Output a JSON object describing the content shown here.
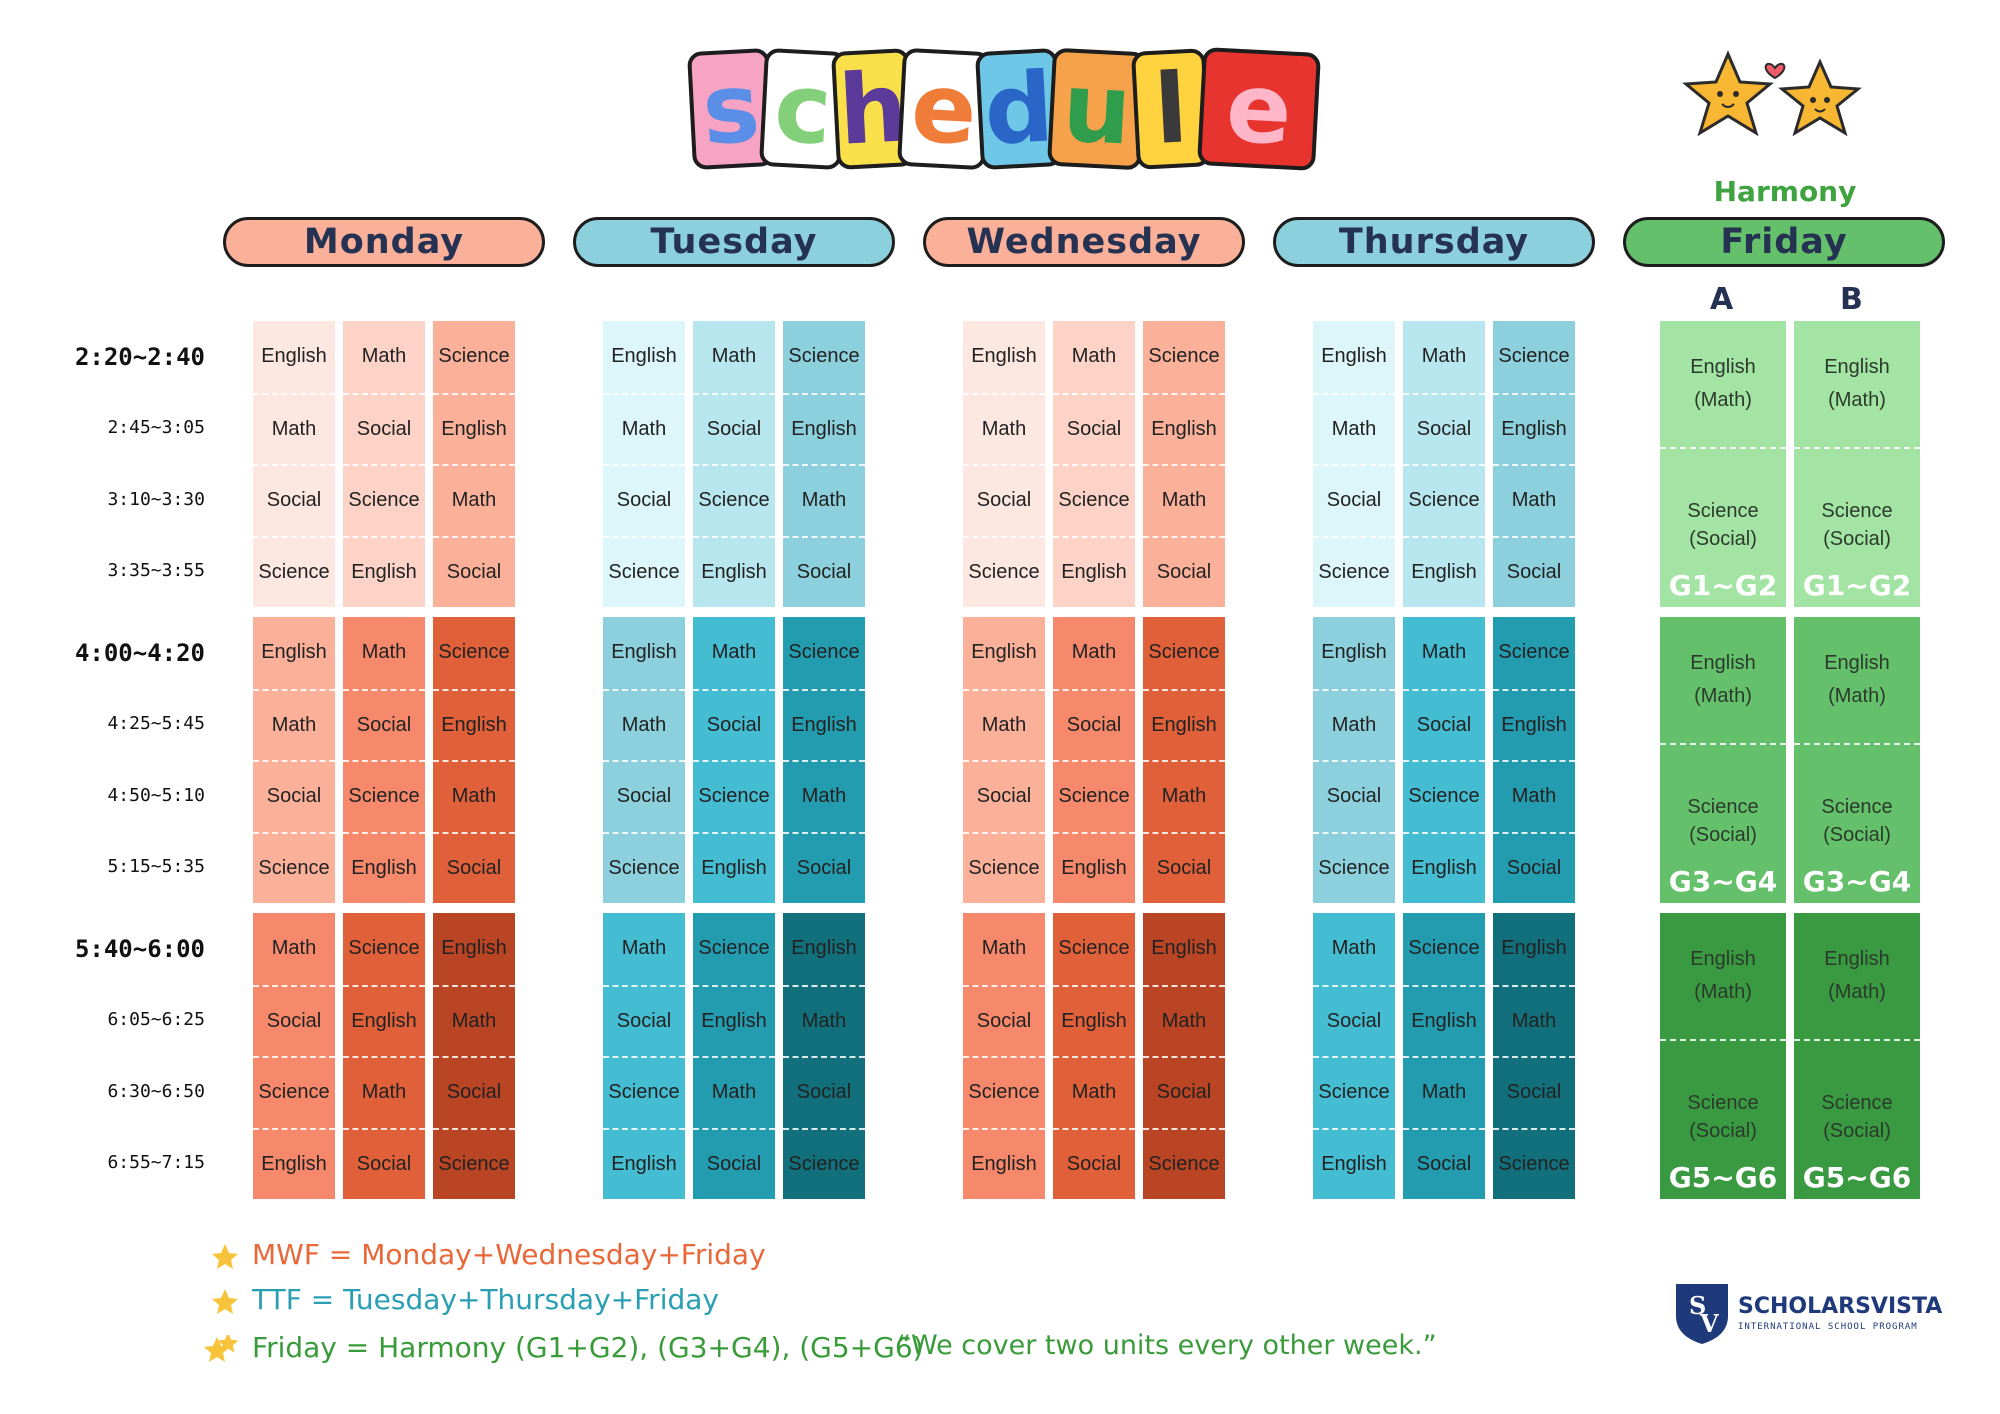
{
  "title": {
    "letters": [
      "s",
      "c",
      "h",
      "e",
      "d",
      "u",
      "l",
      "e"
    ]
  },
  "harmony_label": "Harmony",
  "days": [
    "Monday",
    "Tuesday",
    "Wednesday",
    "Thursday",
    "Friday"
  ],
  "friday_groups": [
    "A",
    "B"
  ],
  "times": [
    {
      "label": "2:20~2:40",
      "main": true
    },
    {
      "label": "2:45~3:05",
      "main": false
    },
    {
      "label": "3:10~3:30",
      "main": false
    },
    {
      "label": "3:35~3:55",
      "main": false
    },
    {
      "label": "4:00~4:20",
      "main": true
    },
    {
      "label": "4:25~5:45",
      "main": false
    },
    {
      "label": "4:50~5:10",
      "main": false
    },
    {
      "label": "5:15~5:35",
      "main": false
    },
    {
      "label": "5:40~6:00",
      "main": true
    },
    {
      "label": "6:05~6:25",
      "main": false
    },
    {
      "label": "6:30~6:50",
      "main": false
    },
    {
      "label": "6:55~7:15",
      "main": false
    }
  ],
  "schedule_rows": [
    [
      "English",
      "Math",
      "Science"
    ],
    [
      "Math",
      "Social",
      "English"
    ],
    [
      "Social",
      "Science",
      "Math"
    ],
    [
      "Science",
      "English",
      "Social"
    ],
    [
      "English",
      "Math",
      "Science"
    ],
    [
      "Math",
      "Social",
      "English"
    ],
    [
      "Social",
      "Science",
      "Math"
    ],
    [
      "Science",
      "English",
      "Social"
    ],
    [
      "Math",
      "Science",
      "English"
    ],
    [
      "Social",
      "English",
      "Math"
    ],
    [
      "Science",
      "Math",
      "Social"
    ],
    [
      "English",
      "Social",
      "Science"
    ]
  ],
  "friday_blocks": [
    {
      "top": "English\n(Math)",
      "bottom": "Science\n(Social)",
      "grade": "G1~G2"
    },
    {
      "top": "English\n(Math)",
      "bottom": "Science\n(Social)",
      "grade": "G3~G4"
    },
    {
      "top": "English\n(Math)",
      "bottom": "Science\n(Social)",
      "grade": "G5~G6"
    }
  ],
  "colors": {
    "monday": [
      [
        "#fde7e1",
        "#fcd3c6",
        "#fbb09a"
      ],
      [
        "#fbb09a",
        "#f6896b",
        "#e0603a"
      ],
      [
        "#f6896b",
        "#e0603a",
        "#b94524"
      ]
    ],
    "tuesday": [
      [
        "#dcf6fa",
        "#b7e6ee",
        "#8bd0dc"
      ],
      [
        "#8bd0dc",
        "#44bcd1",
        "#249caf"
      ],
      [
        "#44bcd1",
        "#249caf",
        "#12707c"
      ]
    ],
    "friday": [
      "#a3e3a3",
      "#64c06a",
      "#3a9a42"
    ],
    "pill_mw": "#fbb09a",
    "pill_tt": "#8bd0dc",
    "pill_fri": "#64c06a"
  },
  "legend": [
    {
      "text": "MWF = Monday+Wednesday+Friday",
      "color": "#e8683a"
    },
    {
      "text": "TTF = Tuesday+Thursday+Friday",
      "color": "#2a9fb3"
    },
    {
      "text": "Friday = Harmony  (G1+G2), (G3+G4), (G5+G6)",
      "color": "#3a9b3a"
    }
  ],
  "quote": "“We cover two units every other week.”",
  "logo": {
    "name": "SCHOLARSVISTA",
    "subtitle": "INTERNATIONAL SCHOOL PROGRAM",
    "monogram": "SV"
  }
}
